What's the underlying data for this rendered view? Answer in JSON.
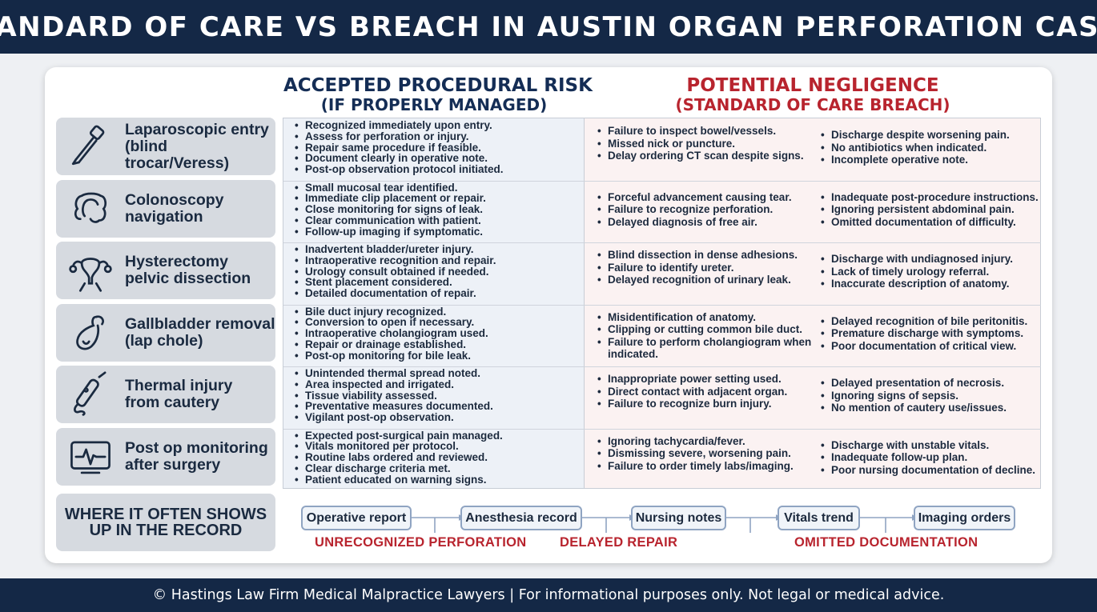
{
  "title": "STANDARD OF CARE VS BREACH IN AUSTIN ORGAN PERFORATION CASES",
  "columns": {
    "accepted": {
      "line1": "ACCEPTED PROCEDURAL RISK",
      "line2": "(IF PROPERLY MANAGED)"
    },
    "negligence": {
      "line1": "POTENTIAL NEGLIGENCE",
      "line2": "(STANDARD OF CARE BREACH)"
    }
  },
  "colors": {
    "navy": "#142846",
    "red": "#b8242e",
    "accepted_bg": "#edf1f7",
    "negligence_bg": "#fbf2f2"
  },
  "rows": [
    {
      "label": "Laparoscopic entry\n(blind trocar/Veress)",
      "icon": "trocar-icon",
      "accepted": [
        "Recognized immediately upon entry.",
        "Assess for perforation or injury.",
        "Repair same procedure if feasible.",
        "Document clearly in operative note.",
        "Post-op observation protocol initiated."
      ],
      "negligence_a": [
        "Failure to inspect bowel/vessels.",
        "Missed nick or puncture.",
        "Delay ordering CT scan despite signs."
      ],
      "negligence_b": [
        "Discharge despite worsening pain.",
        "No antibiotics when indicated.",
        "Incomplete operative note."
      ]
    },
    {
      "label": "Colonoscopy\nnavigation",
      "icon": "colon-icon",
      "accepted": [
        "Small mucosal tear identified.",
        "Immediate clip placement or repair.",
        "Close monitoring for signs of leak.",
        "Clear communication with patient.",
        "Follow-up imaging if symptomatic."
      ],
      "negligence_a": [
        "Forceful advancement causing tear.",
        "Failure to recognize perforation.",
        "Delayed diagnosis of free air."
      ],
      "negligence_b": [
        "Inadequate post-procedure instructions.",
        "Ignoring persistent abdominal pain.",
        "Omitted documentation of difficulty."
      ]
    },
    {
      "label": "Hysterectomy\npelvic dissection",
      "icon": "uterus-icon",
      "accepted": [
        "Inadvertent bladder/ureter injury.",
        "Intraoperative recognition and repair.",
        "Urology consult obtained if needed.",
        "Stent placement considered.",
        "Detailed documentation of repair."
      ],
      "negligence_a": [
        "Blind dissection in dense adhesions.",
        "Failure to identify ureter.",
        "Delayed recognition of urinary leak."
      ],
      "negligence_b": [
        "Discharge with undiagnosed injury.",
        "Lack of timely urology referral.",
        "Inaccurate description of anatomy."
      ]
    },
    {
      "label": "Gallbladder removal\n(lap chole)",
      "icon": "gallbladder-icon",
      "accepted": [
        "Bile duct injury recognized.",
        "Conversion to open if necessary.",
        "Intraoperative cholangiogram used.",
        "Repair or drainage established.",
        "Post-op monitoring for bile leak."
      ],
      "negligence_a": [
        "Misidentification of anatomy.",
        "Clipping or cutting common bile duct.",
        "Failure to perform cholangiogram when indicated."
      ],
      "negligence_b": [
        "Delayed recognition of bile peritonitis.",
        "Premature discharge with symptoms.",
        "Poor documentation of critical view."
      ]
    },
    {
      "label": "Thermal injury\nfrom cautery",
      "icon": "cautery-icon",
      "accepted": [
        "Unintended thermal spread noted.",
        "Area inspected and irrigated.",
        "Tissue viability assessed.",
        "Preventative measures documented.",
        "Vigilant post-op observation."
      ],
      "negligence_a": [
        "Inappropriate power setting used.",
        "Direct contact with adjacent organ.",
        "Failure to recognize burn injury."
      ],
      "negligence_b": [
        "Delayed presentation of necrosis.",
        "Ignoring signs of sepsis.",
        "No mention of cautery use/issues."
      ]
    },
    {
      "label": "Post op monitoring\nafter surgery",
      "icon": "monitor-icon",
      "accepted": [
        "Expected post-surgical pain managed.",
        "Vitals monitored per protocol.",
        "Routine labs ordered and reviewed.",
        "Clear discharge criteria met.",
        "Patient educated on warning signs."
      ],
      "negligence_a": [
        "Ignoring tachycardia/fever.",
        "Dismissing severe, worsening pain.",
        "Failure to order timely labs/imaging."
      ],
      "negligence_b": [
        "Discharge with unstable vitals.",
        "Inadequate follow-up plan.",
        "Poor nursing documentation of decline."
      ]
    }
  ],
  "record": {
    "label": "WHERE IT OFTEN SHOWS\nUP IN THE RECORD",
    "items": [
      "Operative report",
      "Anesthesia record",
      "Nursing notes",
      "Vitals trend",
      "Imaging orders"
    ],
    "flags": [
      "UNRECOGNIZED PERFORATION",
      "DELAYED REPAIR",
      "OMITTED DOCUMENTATION"
    ]
  },
  "footer": "© Hastings Law Firm Medical Malpractice Lawyers | For informational purposes only. Not legal or medical advice."
}
